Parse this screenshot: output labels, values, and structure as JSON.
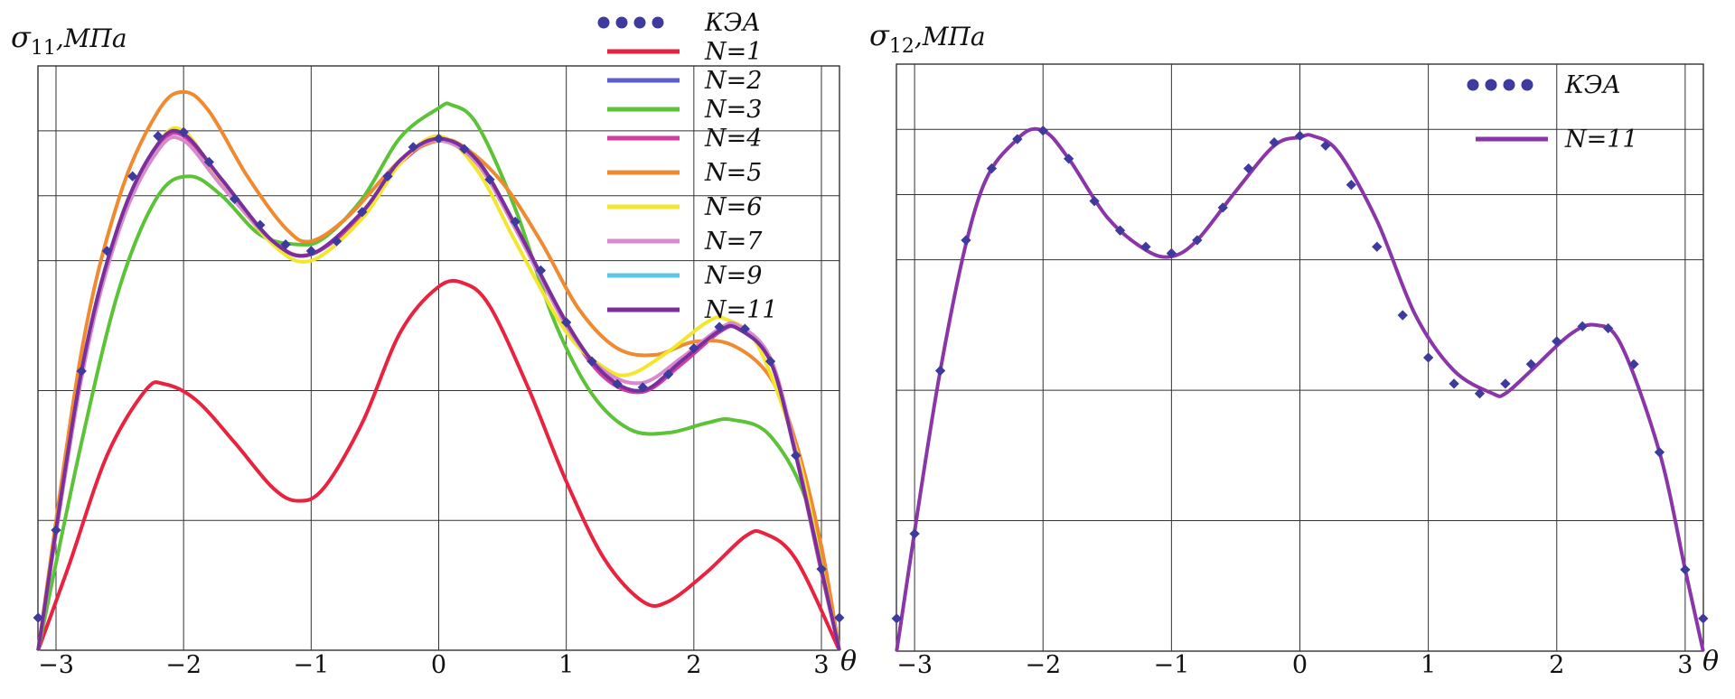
{
  "chart_data": [
    {
      "type": "line",
      "ylabel_symbol": "σ",
      "ylabel_subscript": "11",
      "ylabel_unit": ",МПа",
      "xlabel": "θ",
      "xlim": [
        -3.14159,
        3.14159
      ],
      "ylim": [
        0,
        9
      ],
      "x_ticks": [
        -3,
        -2,
        -1,
        0,
        1,
        2,
        3
      ],
      "x_tick_labels": [
        "−3",
        "−2",
        "−1",
        "0",
        "1",
        "2",
        "3"
      ],
      "y_gridlines": [
        2,
        4,
        6,
        7,
        8,
        9
      ],
      "legend_position": "top-center",
      "series": [
        {
          "name": "КЭА",
          "style": "dots",
          "color": "#3e3a9e",
          "x": [
            -3.14,
            -3.0,
            -2.8,
            -2.6,
            -2.4,
            -2.2,
            -2.0,
            -1.8,
            -1.6,
            -1.4,
            -1.2,
            -1.0,
            -0.8,
            -0.6,
            -0.4,
            -0.2,
            0.0,
            0.2,
            0.4,
            0.6,
            0.8,
            1.0,
            1.2,
            1.4,
            1.6,
            1.8,
            2.0,
            2.2,
            2.4,
            2.6,
            2.8,
            3.0,
            3.14
          ],
          "y": [
            0.5,
            1.85,
            4.3,
            6.15,
            7.3,
            7.92,
            7.98,
            7.52,
            6.95,
            6.55,
            6.25,
            6.15,
            6.3,
            6.75,
            7.3,
            7.75,
            7.88,
            7.72,
            7.25,
            6.6,
            5.85,
            5.05,
            4.45,
            4.1,
            4.05,
            4.25,
            4.65,
            4.98,
            4.95,
            4.45,
            3.0,
            1.25,
            0.5
          ]
        },
        {
          "name": "N=1",
          "style": "line",
          "color": "#e8223f",
          "x": [
            -3.14,
            -2.9,
            -2.6,
            -2.3,
            -2.15,
            -1.9,
            -1.6,
            -1.3,
            -1.1,
            -0.9,
            -0.6,
            -0.3,
            0.0,
            0.2,
            0.4,
            0.7,
            1.0,
            1.3,
            1.6,
            1.8,
            2.1,
            2.4,
            2.55,
            2.8,
            3.14
          ],
          "y": [
            0.0,
            1.3,
            3.0,
            4.0,
            4.1,
            3.85,
            3.2,
            2.5,
            2.3,
            2.5,
            3.5,
            4.9,
            5.6,
            5.65,
            5.3,
            4.05,
            2.6,
            1.4,
            0.75,
            0.75,
            1.2,
            1.75,
            1.8,
            1.4,
            0.0
          ]
        },
        {
          "name": "N=2",
          "style": "line",
          "color": "#5b5fc7",
          "x": [
            -3.14,
            -2.8,
            -2.5,
            -2.2,
            -2.0,
            -1.7,
            -1.3,
            -1.0,
            -0.6,
            -0.3,
            0.0,
            0.3,
            0.6,
            1.0,
            1.3,
            1.6,
            1.9,
            2.2,
            2.35,
            2.6,
            2.8,
            3.0,
            3.14
          ],
          "y": [
            0.0,
            4.3,
            6.6,
            7.8,
            7.95,
            7.25,
            6.3,
            6.1,
            6.75,
            7.55,
            7.88,
            7.55,
            6.55,
            5.05,
            4.25,
            4.0,
            4.45,
            4.92,
            4.95,
            4.45,
            3.0,
            1.25,
            0.0
          ]
        },
        {
          "name": "N=3",
          "style": "line",
          "color": "#5cc238",
          "x": [
            -3.14,
            -2.8,
            -2.5,
            -2.2,
            -1.95,
            -1.7,
            -1.4,
            -1.1,
            -0.9,
            -0.6,
            -0.3,
            0.0,
            0.1,
            0.3,
            0.6,
            0.9,
            1.2,
            1.5,
            1.8,
            2.1,
            2.3,
            2.6,
            2.9,
            3.14
          ],
          "y": [
            0.0,
            3.2,
            5.6,
            7.0,
            7.3,
            7.0,
            6.4,
            6.25,
            6.35,
            6.95,
            7.9,
            8.35,
            8.4,
            8.1,
            6.8,
            5.1,
            3.95,
            3.4,
            3.35,
            3.5,
            3.55,
            3.3,
            2.2,
            0.0
          ]
        },
        {
          "name": "N=4",
          "style": "line",
          "color": "#d43ba3",
          "x": [
            -3.14,
            -2.8,
            -2.5,
            -2.2,
            -2.0,
            -1.7,
            -1.3,
            -1.0,
            -0.6,
            -0.3,
            0.0,
            0.3,
            0.6,
            1.0,
            1.3,
            1.6,
            1.9,
            2.2,
            2.35,
            2.6,
            2.8,
            3.0,
            3.14
          ],
          "y": [
            0.0,
            4.2,
            6.55,
            7.75,
            7.92,
            7.2,
            6.3,
            6.1,
            6.7,
            7.5,
            7.85,
            7.5,
            6.5,
            5.0,
            4.2,
            3.98,
            4.4,
            4.9,
            4.95,
            4.45,
            3.0,
            1.2,
            0.0
          ]
        },
        {
          "name": "N=5",
          "style": "line",
          "color": "#f08a30",
          "x": [
            -3.14,
            -2.8,
            -2.5,
            -2.2,
            -2.0,
            -1.8,
            -1.5,
            -1.2,
            -1.0,
            -0.7,
            -0.3,
            0.0,
            0.2,
            0.5,
            0.8,
            1.1,
            1.4,
            1.7,
            2.0,
            2.3,
            2.6,
            2.8,
            3.0,
            3.14
          ],
          "y": [
            0.0,
            4.6,
            7.0,
            8.3,
            8.6,
            8.3,
            7.3,
            6.5,
            6.3,
            6.7,
            7.55,
            7.85,
            7.75,
            7.2,
            6.3,
            5.25,
            4.65,
            4.55,
            4.75,
            4.7,
            4.2,
            3.2,
            1.6,
            0.0
          ]
        },
        {
          "name": "N=6",
          "style": "line",
          "color": "#f2e62e",
          "x": [
            -3.14,
            -2.8,
            -2.5,
            -2.2,
            -2.0,
            -1.7,
            -1.3,
            -1.0,
            -0.6,
            -0.3,
            0.0,
            0.3,
            0.6,
            1.0,
            1.3,
            1.5,
            1.8,
            2.1,
            2.25,
            2.5,
            2.8,
            3.0,
            3.14
          ],
          "y": [
            0.0,
            4.25,
            6.6,
            7.8,
            8.0,
            7.2,
            6.25,
            6.0,
            6.65,
            7.5,
            7.92,
            7.4,
            6.3,
            4.9,
            4.35,
            4.25,
            4.6,
            5.05,
            5.1,
            4.7,
            3.1,
            1.3,
            0.0
          ]
        },
        {
          "name": "N=7",
          "style": "line",
          "color": "#d88acc",
          "x": [
            -3.14,
            -2.8,
            -2.5,
            -2.2,
            -2.0,
            -1.7,
            -1.3,
            -1.0,
            -0.6,
            -0.3,
            0.0,
            0.3,
            0.6,
            1.0,
            1.3,
            1.6,
            1.9,
            2.2,
            2.35,
            2.6,
            2.8,
            3.0,
            3.14
          ],
          "y": [
            0.0,
            4.2,
            6.5,
            7.7,
            7.85,
            7.15,
            6.3,
            6.1,
            6.75,
            7.55,
            7.85,
            7.5,
            6.5,
            5.0,
            4.3,
            4.12,
            4.5,
            4.95,
            5.0,
            4.5,
            3.05,
            1.25,
            0.0
          ]
        },
        {
          "name": "N=9",
          "style": "line",
          "color": "#5ec7e6",
          "x": [
            -3.14,
            -2.8,
            -2.5,
            -2.2,
            -2.0,
            -1.7,
            -1.3,
            -1.0,
            -0.6,
            -0.3,
            0.0,
            0.3,
            0.6,
            1.0,
            1.3,
            1.6,
            1.9,
            2.2,
            2.35,
            2.6,
            2.8,
            3.0,
            3.14
          ],
          "y": [
            0.0,
            4.3,
            6.6,
            7.8,
            7.95,
            7.25,
            6.3,
            6.1,
            6.75,
            7.55,
            7.88,
            7.55,
            6.55,
            5.05,
            4.25,
            4.0,
            4.45,
            4.92,
            4.95,
            4.45,
            3.0,
            1.25,
            0.0
          ]
        },
        {
          "name": "N=11",
          "style": "line",
          "color": "#7d2e9a",
          "x": [
            -3.14,
            -2.8,
            -2.5,
            -2.2,
            -2.0,
            -1.7,
            -1.3,
            -1.0,
            -0.6,
            -0.3,
            0.0,
            0.3,
            0.6,
            1.0,
            1.3,
            1.6,
            1.9,
            2.2,
            2.35,
            2.6,
            2.8,
            3.0,
            3.14
          ],
          "y": [
            0.0,
            4.3,
            6.6,
            7.8,
            7.95,
            7.25,
            6.3,
            6.1,
            6.75,
            7.55,
            7.88,
            7.55,
            6.55,
            5.05,
            4.25,
            4.0,
            4.45,
            4.92,
            4.95,
            4.45,
            3.0,
            1.25,
            0.0
          ]
        }
      ]
    },
    {
      "type": "line",
      "ylabel_symbol": "σ",
      "ylabel_subscript": "12",
      "ylabel_unit": ",МПа",
      "xlabel": "θ",
      "xlim": [
        -3.14159,
        3.14159
      ],
      "ylim": [
        0,
        9
      ],
      "x_ticks": [
        -3,
        -2,
        -1,
        0,
        1,
        2,
        3
      ],
      "x_tick_labels": [
        "−3",
        "−2",
        "−1",
        "0",
        "1",
        "2",
        "3"
      ],
      "y_gridlines": [
        2,
        4,
        6,
        7,
        8,
        9
      ],
      "legend_position": "top-right",
      "series": [
        {
          "name": "КЭА",
          "style": "dots",
          "color": "#3e3a9e",
          "x": [
            -3.14,
            -3.0,
            -2.8,
            -2.6,
            -2.4,
            -2.2,
            -2.0,
            -1.8,
            -1.6,
            -1.4,
            -1.2,
            -1.0,
            -0.8,
            -0.6,
            -0.4,
            -0.2,
            0.0,
            0.2,
            0.4,
            0.6,
            0.8,
            1.0,
            1.2,
            1.4,
            1.6,
            1.8,
            2.0,
            2.2,
            2.4,
            2.6,
            2.8,
            3.0,
            3.14
          ],
          "y": [
            0.5,
            1.8,
            4.3,
            6.3,
            7.4,
            7.85,
            7.98,
            7.55,
            6.9,
            6.45,
            6.2,
            6.1,
            6.3,
            6.8,
            7.4,
            7.8,
            7.9,
            7.75,
            7.15,
            6.2,
            5.15,
            4.5,
            4.1,
            3.95,
            4.1,
            4.4,
            4.75,
            4.98,
            4.95,
            4.4,
            3.05,
            1.25,
            0.5
          ]
        },
        {
          "name": "N=11",
          "style": "line",
          "color": "#8a36a8",
          "x": [
            -3.14,
            -2.8,
            -2.5,
            -2.2,
            -2.0,
            -1.8,
            -1.5,
            -1.2,
            -1.0,
            -0.8,
            -0.5,
            -0.2,
            0.0,
            0.1,
            0.3,
            0.6,
            0.9,
            1.2,
            1.5,
            1.6,
            1.8,
            2.1,
            2.3,
            2.5,
            2.8,
            3.0,
            3.14
          ],
          "y": [
            0.0,
            4.3,
            6.95,
            7.85,
            7.98,
            7.55,
            6.65,
            6.15,
            6.05,
            6.3,
            7.05,
            7.75,
            7.88,
            7.9,
            7.65,
            6.6,
            5.15,
            4.3,
            3.95,
            3.95,
            4.3,
            4.85,
            5.0,
            4.7,
            3.05,
            1.25,
            0.0
          ]
        }
      ]
    }
  ]
}
